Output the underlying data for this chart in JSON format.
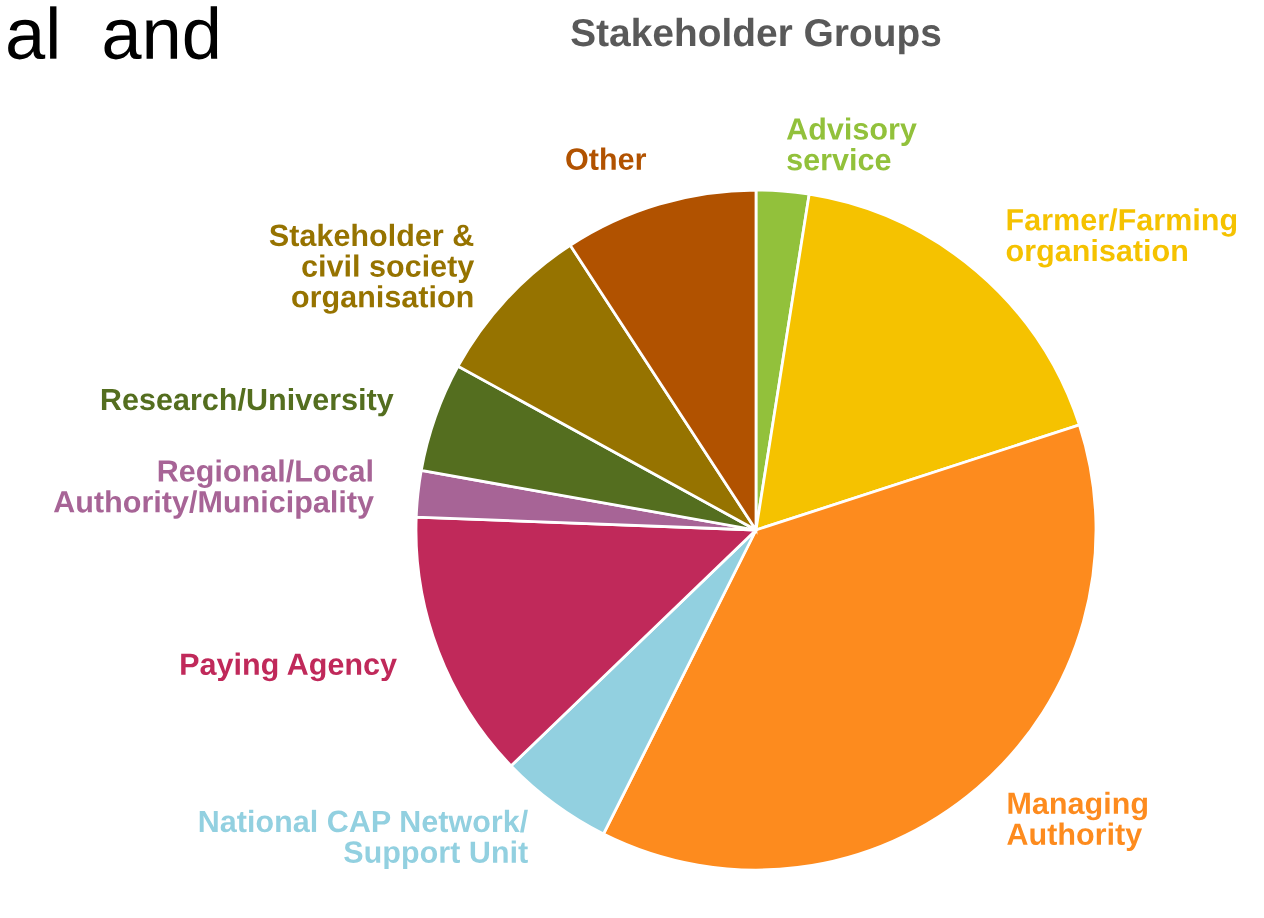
{
  "chart_data": {
    "type": "pie",
    "title": "Stakeholder Groups",
    "categories": [
      "Advisory\nservice",
      "Farmer/Farming\norganisation",
      "Managing\nAuthority",
      "National CAP Network/\nSupport Unit",
      "Paying Agency",
      "Regional/Local\nAuthority/Municipality",
      "Research/University",
      "Stakeholder &\ncivil society\norganisation",
      "Other"
    ],
    "values": [
      2.5,
      17.5,
      37.4,
      5.4,
      12.8,
      2.2,
      5.2,
      7.8,
      9.2
    ],
    "colors": [
      "#92c13b",
      "#f5c200",
      "#fd8b1e",
      "#92d0e0",
      "#c0295a",
      "#a76496",
      "#546e1f",
      "#967300",
      "#b15200"
    ],
    "annotations": [
      "al  and"
    ]
  }
}
